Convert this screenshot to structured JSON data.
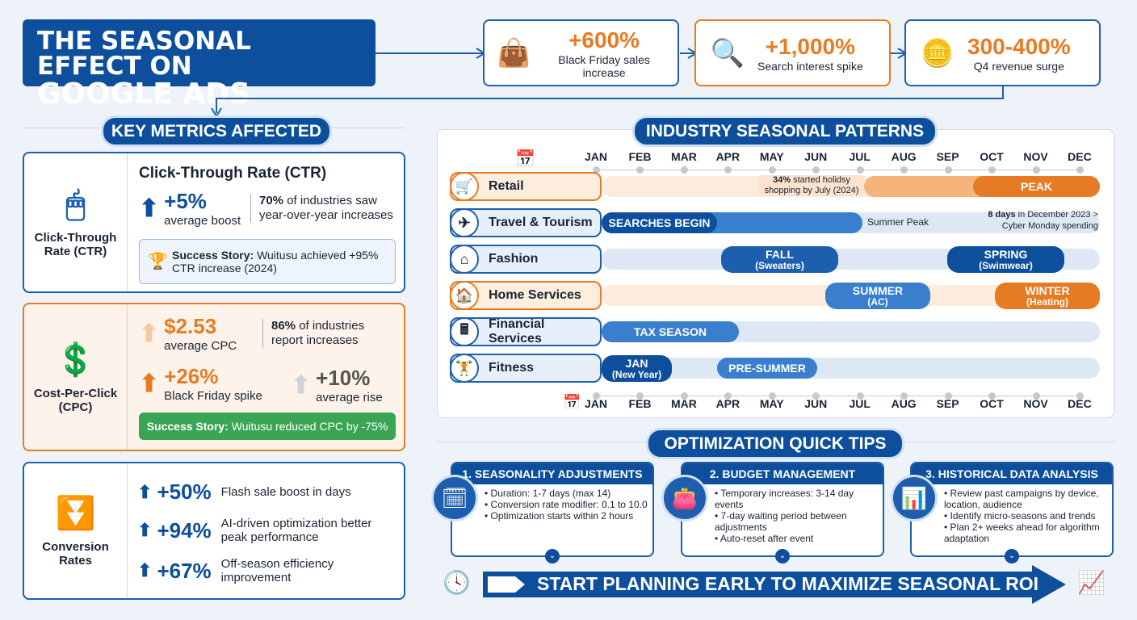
{
  "title": {
    "line1": "THE SEASONAL EFFECT ON",
    "line2": "GOOGLE ADS"
  },
  "stats": [
    {
      "value": "+600%",
      "label": "Black Friday sales increase",
      "icon": "shopping-bag-icon"
    },
    {
      "value": "+1,000%",
      "label": "Search interest spike",
      "icon": "magnifier-icon"
    },
    {
      "value": "300-400%",
      "label": "Q4 revenue surge",
      "icon": "coins-icon"
    }
  ],
  "key_metrics": {
    "header": "KEY METRICS AFFECTED",
    "ctr": {
      "side": "Click-Through Rate (CTR)",
      "title": "Click-Through Rate (CTR)",
      "value": "+5%",
      "value_label": "average boost",
      "pct": "70%",
      "pct_label": "of industries saw year-over-year increases",
      "story_bold": "Success Story:",
      "story": "Wuitusu achieved +95% CTR increase (2024)"
    },
    "cpc": {
      "side": "Cost-Per-Click (CPC)",
      "value": "$2.53",
      "value_label": "average CPC",
      "pct": "86%",
      "pct_label": "of industries report increases",
      "spike": "+26%",
      "spike_label": "Black Friday spike",
      "rise": "+10%",
      "rise_label": "average rise",
      "story_bold": "Success Story:",
      "story": "Wuitusu reduced CPC by -75%"
    },
    "conv": {
      "side": "Conversion Rates",
      "items": [
        {
          "value": "+50%",
          "label": "Flash sale boost in days"
        },
        {
          "value": "+94%",
          "label": "AI-driven optimization better peak performance"
        },
        {
          "value": "+67%",
          "label": "Off-season efficiency improvement"
        }
      ]
    }
  },
  "industry": {
    "header": "INDUSTRY SEASONAL PATTERNS",
    "months": [
      "JAN",
      "FEB",
      "MAR",
      "APR",
      "MAY",
      "JUN",
      "JUL",
      "AUG",
      "SEP",
      "OCT",
      "NOV",
      "DEC"
    ],
    "rows": [
      {
        "label": "Retail"
      },
      {
        "label": "Travel & Tourism"
      },
      {
        "label": "Fashion"
      },
      {
        "label": "Home Services"
      },
      {
        "label": "Financial Services"
      },
      {
        "label": "Fitness"
      }
    ],
    "retail_note_bold": "34%",
    "retail_note": "started holidsy shopping by July (2024)",
    "retail_peak": "PEAK",
    "travel_searches": "SEARCHES BEGIN",
    "travel_summer": "Summer Peak",
    "travel_note_bold": "8 days",
    "travel_note": "in December 2023 > Cyber Monday spending",
    "fashion_fall": "FALL",
    "fashion_fall_sub": "(Sweaters)",
    "fashion_spring": "SPRING",
    "fashion_spring_sub": "(Swimwear)",
    "home_summer": "SUMMER",
    "home_summer_sub": "(AC)",
    "home_winter": "WINTER",
    "home_winter_sub": "(Heating)",
    "fin_tax": "TAX SEASON",
    "fit_jan": "JAN",
    "fit_jan_sub": "(New Year)",
    "fit_pre": "PRE-SUMMER"
  },
  "tips": {
    "header": "OPTIMIZATION QUICK TIPS",
    "cards": [
      {
        "title": "1. SEASONALITY ADJUSTMENTS",
        "items": [
          "Duration: 1-7 days (max 14)",
          "Conversion rate modifier: 0.1 to 10.0",
          "Optimization starts within 2 hours"
        ]
      },
      {
        "title": "2. BUDGET MANAGEMENT",
        "items": [
          "Temporary increases: 3-14 day events",
          "7-day waiting period between adjustments",
          "Auto-reset after event"
        ]
      },
      {
        "title": "3. HISTORICAL DATA ANALYSIS",
        "items": [
          "Review past campaigns by device, location, audience",
          "Identify micro-seasons and trends",
          "Plan 2+ weeks ahead for algorithm adaptation"
        ]
      }
    ]
  },
  "banner": "START PLANNING EARLY TO MAXIMIZE SEASONAL ROI",
  "colors": {
    "navy": "#0d4f9c",
    "blue": "#1d5fae",
    "orange": "#e77b23",
    "green": "#3aa655"
  }
}
